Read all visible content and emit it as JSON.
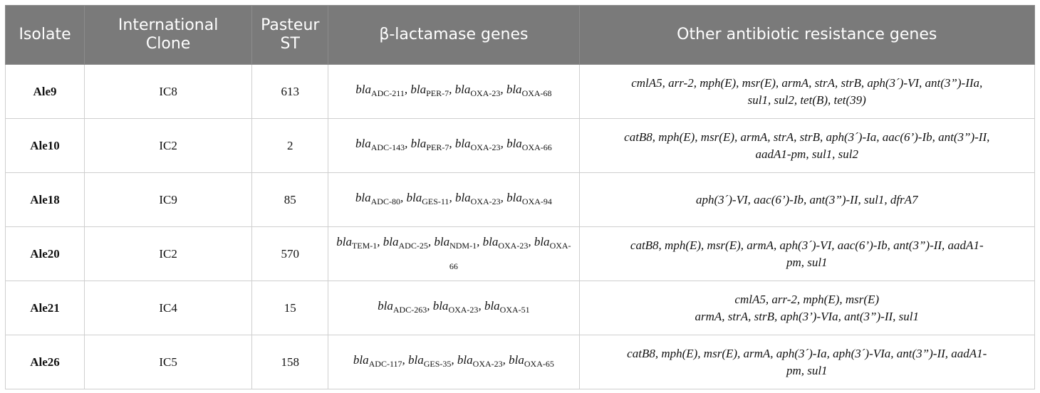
{
  "table": {
    "headers": {
      "isolate": "Isolate",
      "clone_l1": "International",
      "clone_l2": "Clone",
      "st_l1": "Pasteur",
      "st_l2": "ST",
      "blactamase": "β-lactamase genes",
      "other": "Other antibiotic resistance genes"
    },
    "rows": [
      {
        "isolate": "Ale9",
        "clone": "IC8",
        "st": "613",
        "bla": [
          {
            "pre": "bla",
            "sub": "ADC-211",
            "post": ", "
          },
          {
            "pre": "bla",
            "sub": "PER-7",
            "post": ", "
          },
          {
            "pre": "bla",
            "sub": "OXA-23",
            "post": ", "
          },
          {
            "pre": "bla",
            "sub": "OXA-68",
            "post": ""
          }
        ],
        "other_l1": "cmlA5, arr-2, mph(E), msr(E), armA, strA, strB, aph(3´)-VI, ant(3”)-IIa,",
        "other_l2": "sul1, sul2, tet(B), tet(39)"
      },
      {
        "isolate": "Ale10",
        "clone": "IC2",
        "st": "2",
        "bla": [
          {
            "pre": "bla",
            "sub": "ADC-143",
            "post": ", "
          },
          {
            "pre": "bla",
            "sub": "PER-7",
            "post": ", "
          },
          {
            "pre": "bla",
            "sub": "OXA-23",
            "post": ", "
          },
          {
            "pre": "bla",
            "sub": "OXA-66",
            "post": ""
          }
        ],
        "other_l1": "catB8, mph(E), msr(E), armA, strA, strB, aph(3´)-Ia, aac(6’)-Ib, ant(3”)-II,",
        "other_l2": "aadA1-pm, sul1, sul2"
      },
      {
        "isolate": "Ale18",
        "clone": "IC9",
        "st": "85",
        "bla": [
          {
            "pre": "bla",
            "sub": "ADC-80",
            "post": ", "
          },
          {
            "pre": "bla",
            "sub": "GES-11",
            "post": ", "
          },
          {
            "pre": "bla",
            "sub": "OXA-23",
            "post": ", "
          },
          {
            "pre": "bla",
            "sub": "OXA-94",
            "post": ""
          }
        ],
        "other_l1": "aph(3´)-VI, aac(6’)-Ib, ant(3”)-II, sul1, dfrA7",
        "other_l2": ""
      },
      {
        "isolate": "Ale20",
        "clone": "IC2",
        "st": "570",
        "bla": [
          {
            "pre": "bla",
            "sub": "TEM-1",
            "post": ", "
          },
          {
            "pre": "bla",
            "sub": "ADC-25",
            "post": ", "
          },
          {
            "pre": "bla",
            "sub": "NDM-1",
            "post": ", "
          },
          {
            "pre": "bla",
            "sub": "OXA-23",
            "post": ", "
          },
          {
            "pre": "bla",
            "sub": "OXA-66",
            "post": ""
          }
        ],
        "other_l1": "catB8, mph(E), msr(E), armA, aph(3´)-VI, aac(6’)-Ib, ant(3”)-II, aadA1-",
        "other_l2": "pm, sul1"
      },
      {
        "isolate": "Ale21",
        "clone": "IC4",
        "st": "15",
        "bla": [
          {
            "pre": "bla",
            "sub": "ADC-263",
            "post": ", "
          },
          {
            "pre": "bla",
            "sub": "OXA-23",
            "post": ", "
          },
          {
            "pre": "bla",
            "sub": "OXA-51",
            "post": ""
          }
        ],
        "other_l1": "cmlA5, arr-2, mph(E), msr(E)",
        "other_l2": "armA, strA, strB, aph(3’)-VIa, ant(3”)-II, sul1"
      },
      {
        "isolate": "Ale26",
        "clone": "IC5",
        "st": "158",
        "bla": [
          {
            "pre": "bla",
            "sub": "ADC-117",
            "post": ", "
          },
          {
            "pre": "bla",
            "sub": "GES-35",
            "post": ", "
          },
          {
            "pre": "bla",
            "sub": "OXA-23",
            "post": ", "
          },
          {
            "pre": "bla",
            "sub": "OXA-65",
            "post": ""
          }
        ],
        "other_l1": "catB8, mph(E), msr(E), armA, aph(3´)-Ia, aph(3´)-VIa, ant(3”)-II, aadA1-",
        "other_l2": "pm, sul1"
      }
    ]
  }
}
